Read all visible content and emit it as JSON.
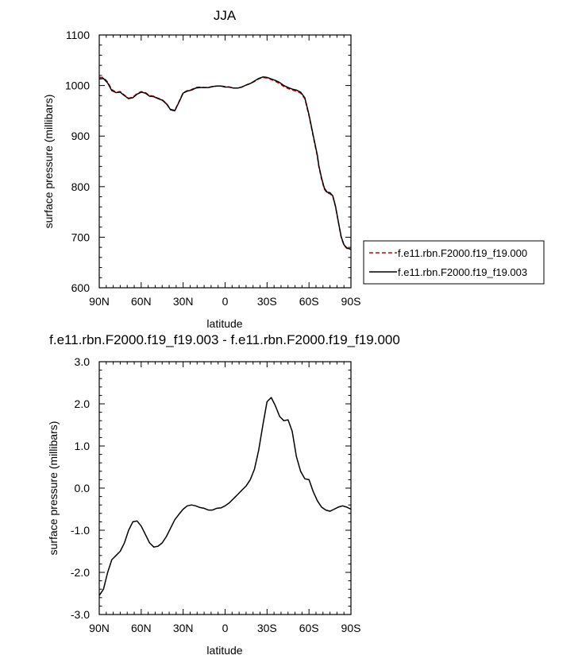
{
  "chart_data": [
    {
      "type": "line",
      "title": "JJA",
      "xlabel": "latitude",
      "ylabel": "surface pressure (millibars)",
      "xlim": [
        90,
        -90
      ],
      "ylim": [
        600,
        1100
      ],
      "x_ticks": [
        90,
        60,
        30,
        0,
        -30,
        -60,
        -90
      ],
      "x_tick_labels": [
        "90N",
        "60N",
        "30N",
        "0",
        "30S",
        "60S",
        "90S"
      ],
      "y_ticks": [
        600,
        700,
        800,
        900,
        1000,
        1100
      ],
      "y_tick_labels": [
        "600",
        "700",
        "800",
        "900",
        "1000",
        "1100"
      ],
      "grid": false,
      "legend_position": "right",
      "series": [
        {
          "name": "f.e11.rbn.F2000.f19_f19.000",
          "color": "#cc0000",
          "dash": "dashed",
          "x": [
            90,
            87,
            84,
            81,
            78,
            75,
            72,
            69,
            66,
            63,
            60,
            57,
            54,
            51,
            48,
            45,
            42,
            39,
            36,
            33,
            30,
            27,
            24,
            21,
            18,
            15,
            12,
            9,
            6,
            3,
            0,
            -3,
            -6,
            -9,
            -12,
            -15,
            -18,
            -21,
            -24,
            -27,
            -30,
            -33,
            -36,
            -39,
            -42,
            -45,
            -48,
            -51,
            -54,
            -57,
            -60,
            -63,
            -66,
            -67,
            -69,
            -71,
            -73,
            -75,
            -77,
            -79,
            -81,
            -83,
            -85,
            -87,
            -89,
            -90
          ],
          "y": [
            1016,
            1016,
            1007,
            992,
            987,
            988,
            981,
            975,
            977,
            984,
            988,
            986,
            980,
            979,
            975,
            972,
            965,
            953,
            951,
            968,
            986,
            990,
            992,
            996,
            997,
            996,
            996,
            998,
            999,
            999,
            998,
            997,
            995,
            995,
            997,
            1001,
            1004,
            1008,
            1013,
            1016,
            1015,
            1012,
            1008,
            1004,
            998,
            994,
            991,
            989,
            985,
            974,
            940,
            900,
            860,
            840,
            815,
            795,
            787,
            786,
            781,
            760,
            730,
            700,
            684,
            678,
            676,
            676
          ]
        },
        {
          "name": "f.e11.rbn.F2000.f19_f19.003",
          "color": "#000000",
          "dash": "solid",
          "x": [
            90,
            87,
            84,
            81,
            78,
            75,
            72,
            69,
            66,
            63,
            60,
            57,
            54,
            51,
            48,
            45,
            42,
            39,
            36,
            33,
            30,
            27,
            24,
            21,
            18,
            15,
            12,
            9,
            6,
            3,
            0,
            -3,
            -6,
            -9,
            -12,
            -15,
            -18,
            -21,
            -24,
            -27,
            -30,
            -33,
            -36,
            -39,
            -42,
            -45,
            -48,
            -51,
            -54,
            -57,
            -60,
            -63,
            -66,
            -67,
            -69,
            -71,
            -73,
            -75,
            -77,
            -79,
            -81,
            -83,
            -85,
            -87,
            -89,
            -90
          ],
          "y": [
            1013,
            1014,
            1005,
            990,
            986,
            987,
            980,
            974,
            976,
            983,
            987,
            985,
            979,
            978,
            974,
            971,
            964,
            952,
            950,
            967,
            985,
            989,
            991,
            995,
            996,
            996,
            996,
            998,
            999,
            999,
            997,
            997,
            995,
            995,
            997,
            1001,
            1004,
            1009,
            1014,
            1017,
            1016,
            1013,
            1010,
            1006,
            1000,
            996,
            993,
            991,
            987,
            976,
            942,
            902,
            862,
            842,
            817,
            797,
            789,
            788,
            782,
            761,
            731,
            701,
            685,
            679,
            677,
            676
          ]
        }
      ]
    },
    {
      "type": "line",
      "title": "f.e11.rbn.F2000.f19_f19.003 - f.e11.rbn.F2000.f19_f19.000",
      "xlabel": "latitude",
      "ylabel": "surface pressure (millibars)",
      "xlim": [
        90,
        -90
      ],
      "ylim": [
        -3.0,
        3.0
      ],
      "x_ticks": [
        90,
        60,
        30,
        0,
        -30,
        -60,
        -90
      ],
      "x_tick_labels": [
        "90N",
        "60N",
        "30N",
        "0",
        "30S",
        "60S",
        "90S"
      ],
      "y_ticks": [
        -3,
        -2,
        -1,
        0,
        1,
        2,
        3
      ],
      "y_tick_labels": [
        "-3.0",
        "-2.0",
        "-1.0",
        "0.0",
        "1.0",
        "2.0",
        "3.0"
      ],
      "grid": false,
      "series": [
        {
          "color": "#000000",
          "dash": "solid",
          "x": [
            90,
            87,
            84,
            81,
            78,
            75,
            72,
            69,
            66,
            63,
            60,
            57,
            54,
            51,
            48,
            45,
            42,
            39,
            36,
            33,
            30,
            27,
            24,
            21,
            18,
            15,
            12,
            9,
            6,
            3,
            0,
            -3,
            -6,
            -9,
            -12,
            -15,
            -18,
            -21,
            -24,
            -27,
            -30,
            -33,
            -36,
            -39,
            -42,
            -45,
            -48,
            -51,
            -54,
            -57,
            -60,
            -63,
            -66,
            -69,
            -72,
            -75,
            -78,
            -81,
            -84,
            -87,
            -90
          ],
          "y": [
            -2.55,
            -2.4,
            -2.0,
            -1.7,
            -1.6,
            -1.5,
            -1.3,
            -1.0,
            -0.8,
            -0.78,
            -0.9,
            -1.1,
            -1.3,
            -1.4,
            -1.38,
            -1.3,
            -1.15,
            -0.95,
            -0.75,
            -0.62,
            -0.5,
            -0.42,
            -0.4,
            -0.42,
            -0.46,
            -0.48,
            -0.52,
            -0.52,
            -0.48,
            -0.47,
            -0.42,
            -0.35,
            -0.25,
            -0.15,
            -0.05,
            0.05,
            0.2,
            0.45,
            0.9,
            1.5,
            2.05,
            2.15,
            1.95,
            1.7,
            1.6,
            1.62,
            1.35,
            0.75,
            0.4,
            0.22,
            0.2,
            -0.08,
            -0.3,
            -0.45,
            -0.52,
            -0.55,
            -0.5,
            -0.45,
            -0.42,
            -0.45,
            -0.5
          ]
        }
      ]
    }
  ]
}
